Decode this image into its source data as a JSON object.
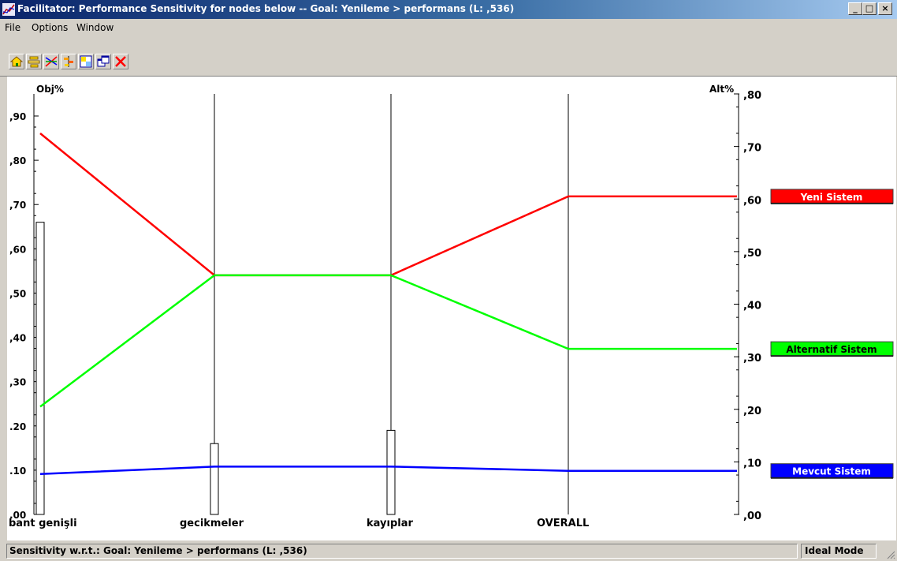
{
  "window": {
    "title": "Facilitator: Performance Sensitivity for nodes below -- Goal: Yenileme > performans (L: ,536)",
    "minimize_label": "_",
    "maximize_label": "□",
    "close_label": "×"
  },
  "menu": [
    "File",
    "Options",
    "Window"
  ],
  "toolbar": {
    "icons": [
      "home-icon",
      "tree-icon",
      "sensitivity-star-icon",
      "bar-gradient-icon",
      "two-d-plot-icon",
      "windows-icon",
      "close-x-icon"
    ]
  },
  "chart": {
    "left_axis_title": "Obj%",
    "right_axis_title": "Alt%",
    "left_ticks": [
      ".00",
      ".10",
      ".20",
      ",30",
      ",40",
      ",50",
      ",60",
      ",70",
      ",80",
      ",90"
    ],
    "right_ticks": [
      ",00",
      ",10",
      ",20",
      ",30",
      ",40",
      ",50",
      ",60",
      ",70",
      ",80"
    ],
    "legend_colors": {
      "Yeni Sistem": "#ff0000",
      "Alternatif Sistem": "#00ff00",
      "Mevcut Sistem": "#0000ff"
    }
  },
  "chart_data": {
    "type": "line",
    "x": [
      "bant genişli",
      "gecikmeler",
      "kayıplar",
      "OVERALL"
    ],
    "objective_bars": [
      0.66,
      0.16,
      0.19
    ],
    "left_ylim": [
      0,
      1.0
    ],
    "right_ylim": [
      0,
      0.8
    ],
    "series": [
      {
        "name": "Yeni Sistem",
        "color": "#ff0000",
        "values": [
          0.725,
          0.455,
          0.455,
          0.605
        ]
      },
      {
        "name": "Alternatif Sistem",
        "color": "#00ff00",
        "values": [
          0.205,
          0.455,
          0.455,
          0.315
        ]
      },
      {
        "name": "Mevcut Sistem",
        "color": "#0000ff",
        "values": [
          0.077,
          0.091,
          0.091,
          0.083
        ]
      }
    ]
  },
  "status": {
    "text": "Sensitivity w.r.t.: Goal: Yenileme > performans (L: ,536)",
    "mode": "Ideal Mode"
  }
}
